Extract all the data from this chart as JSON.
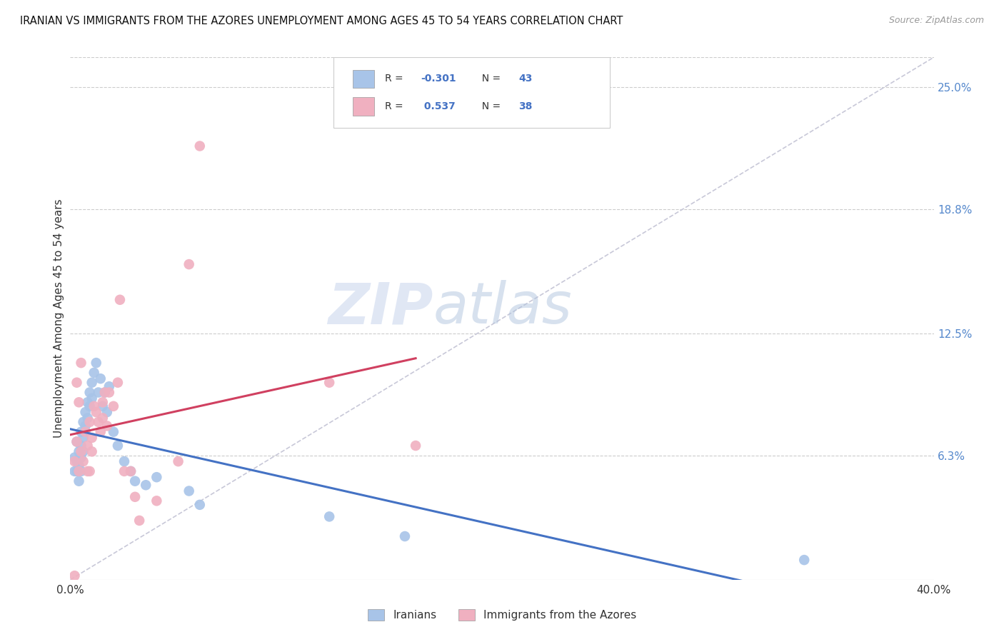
{
  "title": "IRANIAN VS IMMIGRANTS FROM THE AZORES UNEMPLOYMENT AMONG AGES 45 TO 54 YEARS CORRELATION CHART",
  "source": "Source: ZipAtlas.com",
  "ylabel": "Unemployment Among Ages 45 to 54 years",
  "xlim": [
    0.0,
    0.4
  ],
  "ylim": [
    0.0,
    0.265
  ],
  "ytick_labels_right": [
    "25.0%",
    "18.8%",
    "12.5%",
    "6.3%"
  ],
  "ytick_values_right": [
    0.25,
    0.188,
    0.125,
    0.063
  ],
  "background_color": "#ffffff",
  "grid_color": "#cccccc",
  "iranians_color": "#a8c4e8",
  "azores_color": "#f0b0c0",
  "iranians_line_color": "#4472c4",
  "azores_line_color": "#d04060",
  "diagonal_color": "#c8c8d8",
  "iranians_R": -0.301,
  "iranians_N": 43,
  "azores_R": 0.537,
  "azores_N": 38,
  "footer_labels": [
    "Iranians",
    "Immigrants from the Azores"
  ],
  "footer_colors": [
    "#a8c4e8",
    "#f0b0c0"
  ],
  "iranians_x": [
    0.002,
    0.002,
    0.003,
    0.003,
    0.003,
    0.004,
    0.004,
    0.004,
    0.005,
    0.005,
    0.005,
    0.005,
    0.006,
    0.006,
    0.006,
    0.007,
    0.007,
    0.008,
    0.008,
    0.009,
    0.009,
    0.01,
    0.01,
    0.011,
    0.012,
    0.013,
    0.014,
    0.015,
    0.016,
    0.017,
    0.018,
    0.02,
    0.022,
    0.025,
    0.028,
    0.03,
    0.035,
    0.04,
    0.055,
    0.06,
    0.12,
    0.155,
    0.34
  ],
  "iranians_y": [
    0.062,
    0.055,
    0.07,
    0.06,
    0.055,
    0.065,
    0.058,
    0.05,
    0.075,
    0.068,
    0.062,
    0.055,
    0.08,
    0.072,
    0.065,
    0.085,
    0.078,
    0.09,
    0.082,
    0.095,
    0.088,
    0.1,
    0.092,
    0.105,
    0.11,
    0.095,
    0.102,
    0.088,
    0.095,
    0.085,
    0.098,
    0.075,
    0.068,
    0.06,
    0.055,
    0.05,
    0.048,
    0.052,
    0.045,
    0.038,
    0.032,
    0.022,
    0.01
  ],
  "azores_x": [
    0.002,
    0.002,
    0.003,
    0.003,
    0.004,
    0.004,
    0.005,
    0.005,
    0.006,
    0.007,
    0.008,
    0.008,
    0.009,
    0.009,
    0.01,
    0.01,
    0.011,
    0.012,
    0.013,
    0.014,
    0.015,
    0.015,
    0.016,
    0.017,
    0.018,
    0.02,
    0.022,
    0.023,
    0.025,
    0.028,
    0.03,
    0.032,
    0.04,
    0.05,
    0.055,
    0.06,
    0.12,
    0.16
  ],
  "azores_y": [
    0.002,
    0.06,
    0.07,
    0.1,
    0.055,
    0.09,
    0.065,
    0.11,
    0.06,
    0.075,
    0.068,
    0.055,
    0.08,
    0.055,
    0.072,
    0.065,
    0.088,
    0.085,
    0.08,
    0.075,
    0.09,
    0.082,
    0.095,
    0.078,
    0.095,
    0.088,
    0.1,
    0.142,
    0.055,
    0.055,
    0.042,
    0.03,
    0.04,
    0.06,
    0.16,
    0.22,
    0.1,
    0.068
  ]
}
